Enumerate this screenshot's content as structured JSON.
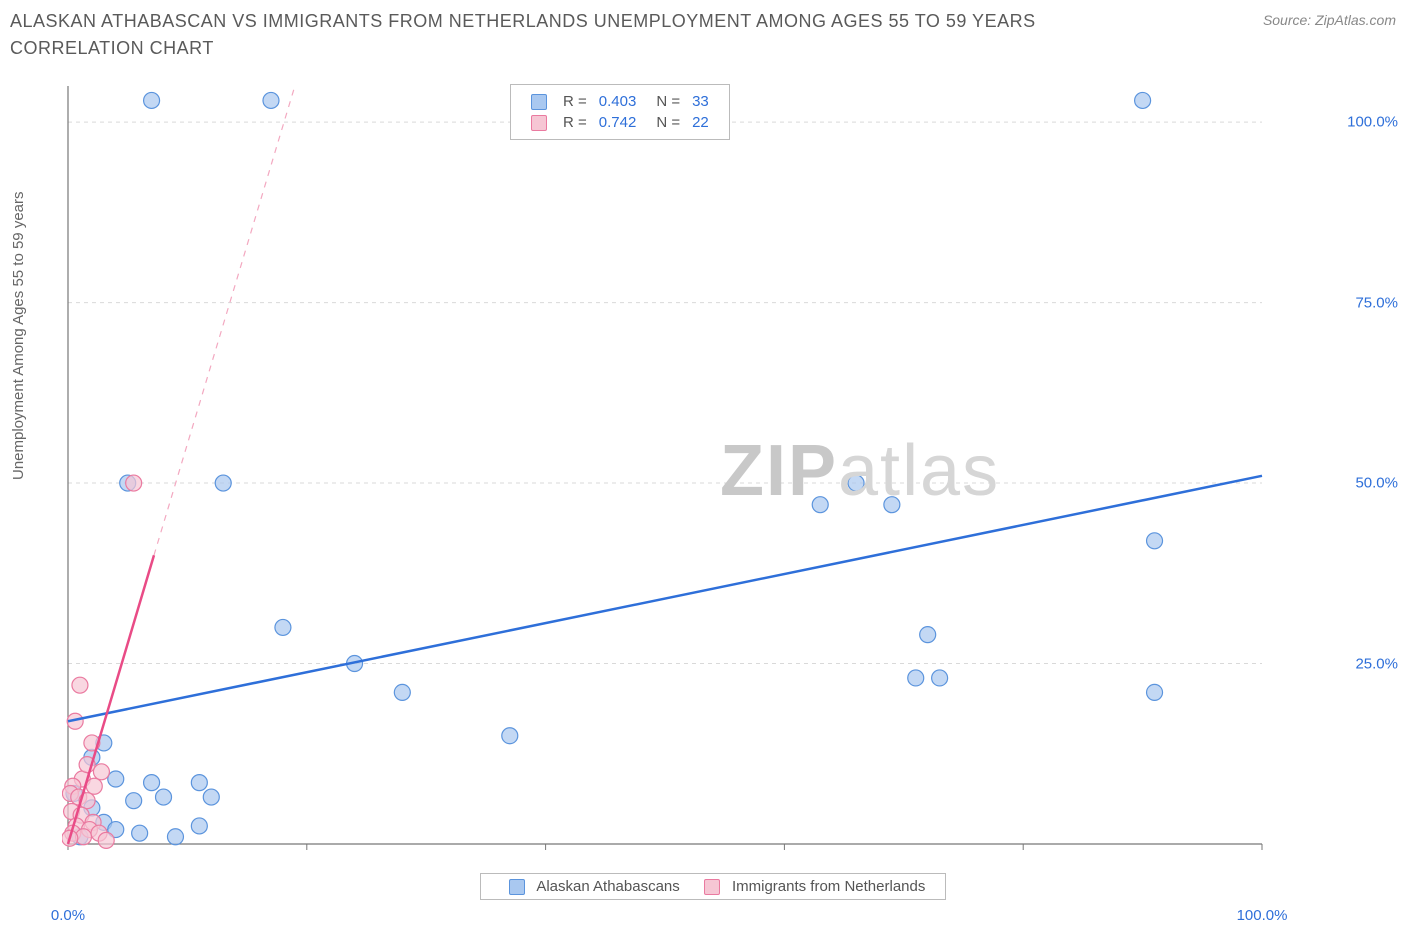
{
  "title": "ALASKAN ATHABASCAN VS IMMIGRANTS FROM NETHERLANDS UNEMPLOYMENT AMONG AGES 55 TO 59 YEARS CORRELATION CHART",
  "source": "Source: ZipAtlas.com",
  "y_axis_label": "Unemployment Among Ages 55 to 59 years",
  "watermark_a": "ZIP",
  "watermark_b": "atlas",
  "chart": {
    "type": "scatter",
    "background_color": "#ffffff",
    "grid_color": "#d9d9d9",
    "grid_dash": "4,4",
    "axis_line_color": "#777777",
    "xlim": [
      0,
      100
    ],
    "ylim": [
      0,
      105
    ],
    "x_ticks": [
      0,
      20,
      40,
      60,
      80,
      100
    ],
    "y_ticks": [
      25,
      50,
      75,
      100
    ],
    "x_tick_labels": [
      "0.0%",
      "",
      "",
      "",
      "",
      "100.0%"
    ],
    "y_tick_labels": [
      "25.0%",
      "50.0%",
      "75.0%",
      "100.0%"
    ],
    "tick_label_color": "#2e6fd9",
    "tick_label_fontsize": 15,
    "series": [
      {
        "name": "Alaskan Athabascans",
        "color_fill": "#a9c8f0",
        "color_stroke": "#5b94dd",
        "marker_radius": 8,
        "marker_opacity": 0.7,
        "points": [
          [
            7,
            103
          ],
          [
            17,
            103
          ],
          [
            90,
            103
          ],
          [
            13,
            50
          ],
          [
            5,
            50
          ],
          [
            18,
            30
          ],
          [
            24,
            25
          ],
          [
            28,
            21
          ],
          [
            37,
            15
          ],
          [
            3,
            14
          ],
          [
            7,
            8.5
          ],
          [
            11,
            8.5
          ],
          [
            8,
            6.5
          ],
          [
            12,
            6.5
          ],
          [
            2,
            12
          ],
          [
            4,
            9
          ],
          [
            5.5,
            6
          ],
          [
            3,
            3
          ],
          [
            4,
            2
          ],
          [
            6,
            1.5
          ],
          [
            9,
            1
          ],
          [
            11,
            2.5
          ],
          [
            1,
            1
          ],
          [
            2,
            5
          ],
          [
            0.5,
            7
          ],
          [
            63,
            47
          ],
          [
            69,
            47
          ],
          [
            66,
            50
          ],
          [
            72,
            29
          ],
          [
            71,
            23
          ],
          [
            73,
            23
          ],
          [
            91,
            42
          ],
          [
            91,
            21
          ]
        ],
        "trend": {
          "x1": 0,
          "y1": 17,
          "x2": 100,
          "y2": 51,
          "color": "#2e6fd9",
          "width": 2.5,
          "dash": "none"
        },
        "trend_ext": null
      },
      {
        "name": "Immigrants from Netherlands",
        "color_fill": "#f6c6d4",
        "color_stroke": "#ea7aa0",
        "marker_radius": 8,
        "marker_opacity": 0.7,
        "points": [
          [
            5.5,
            50
          ],
          [
            1,
            22
          ],
          [
            0.6,
            17
          ],
          [
            2,
            14
          ],
          [
            2.8,
            10
          ],
          [
            1.2,
            9
          ],
          [
            0.4,
            8
          ],
          [
            0.2,
            7
          ],
          [
            2.2,
            8
          ],
          [
            0.9,
            6.5
          ],
          [
            1.6,
            6
          ],
          [
            0.3,
            4.5
          ],
          [
            1.1,
            4
          ],
          [
            2.1,
            3
          ],
          [
            0.7,
            2.5
          ],
          [
            1.8,
            2
          ],
          [
            0.4,
            1.5
          ],
          [
            1.3,
            1
          ],
          [
            2.6,
            1.5
          ],
          [
            0.15,
            0.8
          ],
          [
            3.2,
            0.5
          ],
          [
            1.6,
            11
          ]
        ],
        "trend": {
          "x1": 0,
          "y1": 0,
          "x2": 7.2,
          "y2": 40,
          "color": "#e94b86",
          "width": 2.5,
          "dash": "none"
        },
        "trend_ext": {
          "x1": 7.2,
          "y1": 40,
          "x2": 19,
          "y2": 105,
          "color": "#f3a8c0",
          "width": 1.2,
          "dash": "6,6"
        }
      }
    ]
  },
  "legend_top": {
    "rows": [
      {
        "swatch_fill": "#a9c8f0",
        "swatch_stroke": "#5b94dd",
        "r_label": "R =",
        "r_val": "0.403",
        "n_label": "N =",
        "n_val": "33"
      },
      {
        "swatch_fill": "#f6c6d4",
        "swatch_stroke": "#ea7aa0",
        "r_label": "R =",
        "r_val": "0.742",
        "n_label": "N =",
        "n_val": "22"
      }
    ]
  },
  "legend_bottom": {
    "items": [
      {
        "swatch_fill": "#a9c8f0",
        "swatch_stroke": "#5b94dd",
        "label": "Alaskan Athabascans"
      },
      {
        "swatch_fill": "#f6c6d4",
        "swatch_stroke": "#ea7aa0",
        "label": "Immigrants from Netherlands"
      }
    ]
  }
}
